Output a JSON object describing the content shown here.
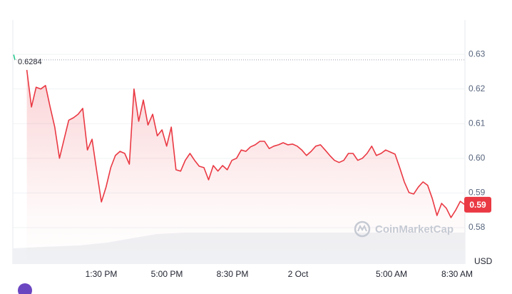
{
  "chart_data": {
    "type": "line",
    "values": [
      null,
      null,
      null,
      0.6255,
      0.6148,
      0.6205,
      0.62,
      0.621,
      0.6148,
      0.609,
      0.6,
      0.6055,
      0.611,
      0.6117,
      0.6127,
      0.6144,
      0.6024,
      0.6055,
      0.5963,
      0.5874,
      0.5917,
      0.5973,
      0.6008,
      0.602,
      0.6014,
      0.5983,
      0.62,
      0.6107,
      0.6168,
      0.6096,
      0.6127,
      0.6065,
      0.6082,
      0.6035,
      0.609,
      0.5967,
      0.5963,
      0.5994,
      0.6014,
      0.5994,
      0.5977,
      0.5973,
      0.5938,
      0.5979,
      0.5963,
      0.5979,
      0.5967,
      0.5994,
      0.6,
      0.6024,
      0.602,
      0.6033,
      0.6039,
      0.6049,
      0.6049,
      0.6028,
      0.6035,
      0.6039,
      0.6045,
      0.6039,
      0.6041,
      0.6035,
      0.6024,
      0.6008,
      0.602,
      0.6035,
      0.6039,
      0.6024,
      0.6008,
      0.5994,
      0.5988,
      0.5994,
      0.6014,
      0.6014,
      0.5994,
      0.6,
      0.6014,
      0.6035,
      0.6008,
      0.6014,
      0.6024,
      0.6018,
      0.6012,
      0.5973,
      0.5932,
      0.5901,
      0.5897,
      0.5917,
      0.5932,
      0.5922,
      0.5884,
      0.5835,
      0.587,
      0.5856,
      0.5829,
      0.585,
      0.5876,
      0.5866
    ],
    "color": "#ea3943",
    "xlim": [
      0,
      97
    ],
    "xticks": [
      {
        "value": 18.97,
        "label": "1:30 PM"
      },
      {
        "value": 33.05,
        "label": "5:00 PM"
      },
      {
        "value": 47.12,
        "label": "8:30 PM"
      },
      {
        "value": 61.2,
        "label": "2 Oct"
      },
      {
        "value": 81.24,
        "label": "5:00 AM"
      },
      {
        "value": 95.32,
        "label": "8:30 AM"
      }
    ],
    "ylim": [
      0.5695,
      0.6399
    ],
    "yticks": [
      0.63,
      0.62,
      0.61,
      {
        "value": 0.6,
        "label": "0.60"
      },
      0.59,
      0.58
    ],
    "y_axis_label": "USD",
    "reference": {
      "value": 0.6284,
      "label": "0.6284"
    },
    "price_tag": {
      "value": 0.5866,
      "label": "0.59"
    },
    "watermark": "CoinMarketCap",
    "grid": true
  }
}
